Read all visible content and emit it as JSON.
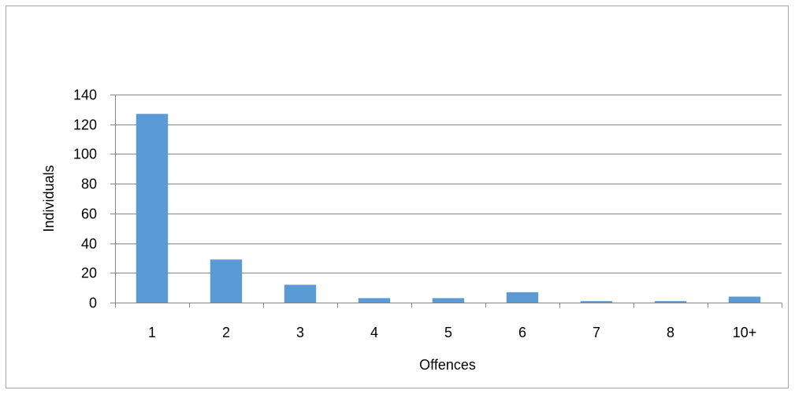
{
  "chart_data": {
    "type": "bar",
    "title": "",
    "xlabel": "Offences",
    "ylabel": "Individuals",
    "categories": [
      "1",
      "2",
      "3",
      "4",
      "5",
      "6",
      "7",
      "8",
      "10+"
    ],
    "values": [
      127,
      29,
      12,
      3,
      3,
      7,
      1,
      1,
      4
    ],
    "ylim": [
      0,
      140
    ],
    "yticks": [
      "0",
      "20",
      "40",
      "60",
      "80",
      "100",
      "120",
      "140"
    ],
    "grid": true,
    "legend": "none",
    "colors": {
      "bar": "#5b9bd5",
      "grid": "#868686",
      "axis": "#868686",
      "frame": "#a6a6a6"
    }
  }
}
